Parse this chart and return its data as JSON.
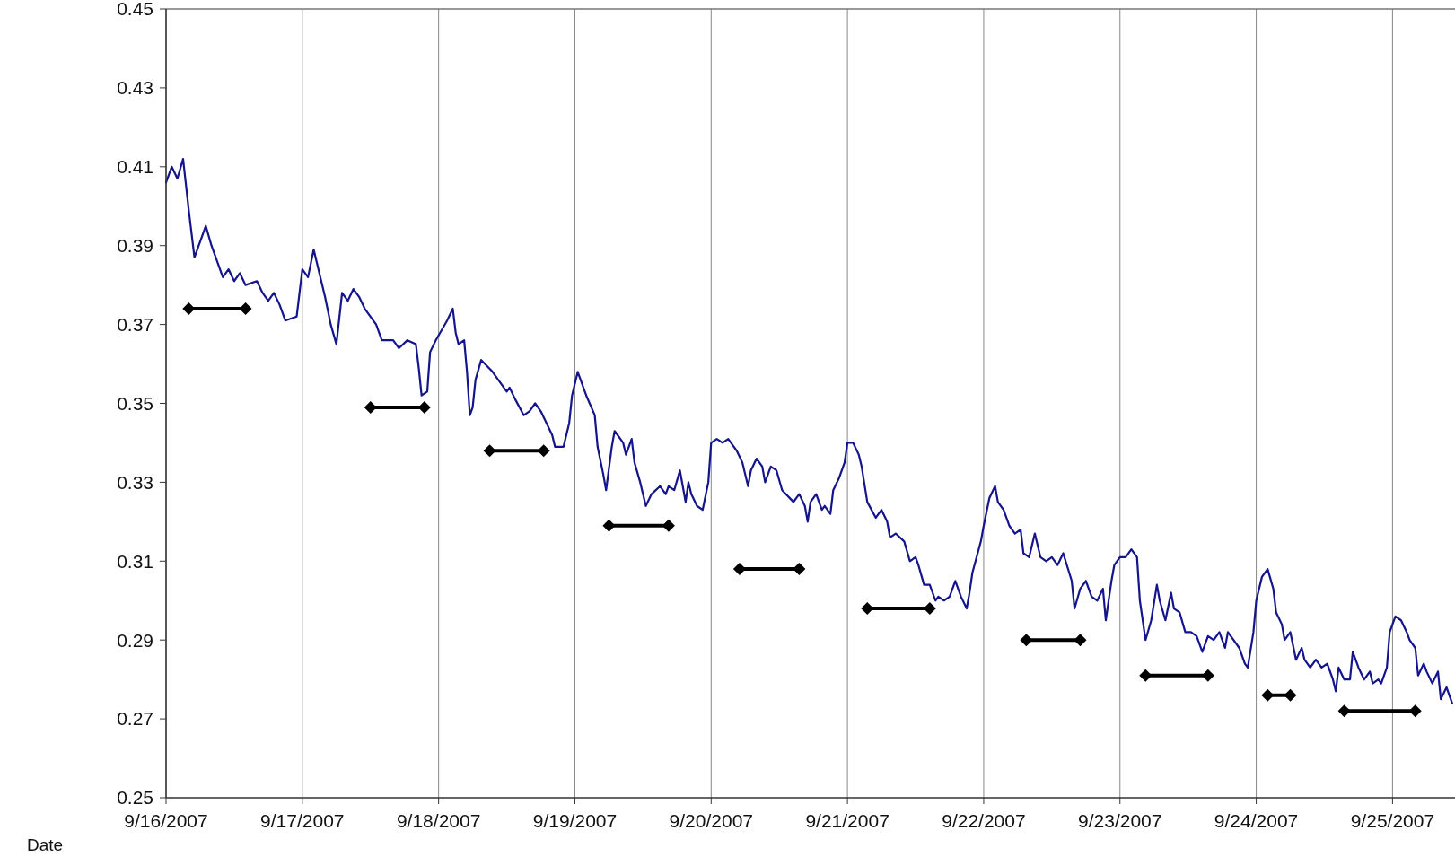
{
  "chart_data": {
    "type": "line",
    "xlabel": "Date",
    "xlim": [
      "2007-09-16",
      "2007-09-25T11:00"
    ],
    "xticks": [
      {
        "value": "2007-09-16",
        "label": "9/16/2007"
      },
      {
        "value": "2007-09-17",
        "label": "9/17/2007"
      },
      {
        "value": "2007-09-18",
        "label": "9/18/2007"
      },
      {
        "value": "2007-09-19",
        "label": "9/19/2007"
      },
      {
        "value": "2007-09-20",
        "label": "9/20/2007"
      },
      {
        "value": "2007-09-21",
        "label": "9/21/2007"
      },
      {
        "value": "2007-09-22",
        "label": "9/22/2007"
      },
      {
        "value": "2007-09-23",
        "label": "9/23/2007"
      },
      {
        "value": "2007-09-24",
        "label": "9/24/2007"
      },
      {
        "value": "2007-09-25",
        "label": "9/25/2007"
      }
    ],
    "ylim": [
      0.25,
      0.45
    ],
    "yticks": [
      0.25,
      0.27,
      0.29,
      0.31,
      0.33,
      0.35,
      0.37,
      0.39,
      0.41,
      0.43,
      0.45
    ],
    "grid": "x",
    "line_style": "solid",
    "series": [
      {
        "color": "#14148c",
        "marker": "none",
        "x": [
          "2007-09-16T00:00",
          "2007-09-16T01:00",
          "2007-09-16T02:00",
          "2007-09-16T03:00",
          "2007-09-16T04:00",
          "2007-09-16T05:00",
          "2007-09-16T07:00",
          "2007-09-16T08:00",
          "2007-09-16T10:00",
          "2007-09-16T11:00",
          "2007-09-16T12:00",
          "2007-09-16T13:00",
          "2007-09-16T14:00",
          "2007-09-16T16:00",
          "2007-09-16T17:00",
          "2007-09-16T18:00",
          "2007-09-16T19:00",
          "2007-09-16T20:00",
          "2007-09-16T21:00",
          "2007-09-16T23:00",
          "2007-09-17T00:00",
          "2007-09-17T01:00",
          "2007-09-17T02:00",
          "2007-09-17T03:00",
          "2007-09-17T04:00",
          "2007-09-17T05:00",
          "2007-09-17T06:00",
          "2007-09-17T07:00",
          "2007-09-17T08:00",
          "2007-09-17T09:00",
          "2007-09-17T10:00",
          "2007-09-17T11:00",
          "2007-09-17T12:00",
          "2007-09-17T13:00",
          "2007-09-17T14:00",
          "2007-09-17T16:00",
          "2007-09-17T17:00",
          "2007-09-17T18:30",
          "2007-09-17T20:00",
          "2007-09-17T20:30",
          "2007-09-17T21:00",
          "2007-09-17T22:00",
          "2007-09-17T22:30",
          "2007-09-17T23:30",
          "2007-09-18T01:30",
          "2007-09-18T02:30",
          "2007-09-18T03:00",
          "2007-09-18T03:30",
          "2007-09-18T04:30",
          "2007-09-18T05:00",
          "2007-09-18T05:30",
          "2007-09-18T06:00",
          "2007-09-18T06:30",
          "2007-09-18T07:30",
          "2007-09-18T09:30",
          "2007-09-18T11:00",
          "2007-09-18T12:00",
          "2007-09-18T12:30",
          "2007-09-18T13:30",
          "2007-09-18T15:00",
          "2007-09-18T16:00",
          "2007-09-18T17:00",
          "2007-09-18T18:00",
          "2007-09-18T20:00",
          "2007-09-18T20:30",
          "2007-09-18T22:00",
          "2007-09-18T23:00",
          "2007-09-18T23:30",
          "2007-09-19T00:30",
          "2007-09-19T01:00",
          "2007-09-19T02:00",
          "2007-09-19T03:30",
          "2007-09-19T04:00",
          "2007-09-19T05:00",
          "2007-09-19T05:30",
          "2007-09-19T06:30",
          "2007-09-19T07:00",
          "2007-09-19T08:30",
          "2007-09-19T09:00",
          "2007-09-19T10:00",
          "2007-09-19T10:30",
          "2007-09-19T11:30",
          "2007-09-19T12:30",
          "2007-09-19T13:30",
          "2007-09-19T15:00",
          "2007-09-19T16:00",
          "2007-09-19T16:30",
          "2007-09-19T17:30",
          "2007-09-19T18:30",
          "2007-09-19T19:30",
          "2007-09-19T20:00",
          "2007-09-19T20:30",
          "2007-09-19T21:30",
          "2007-09-19T22:30",
          "2007-09-19T23:30",
          "2007-09-20T00:00",
          "2007-09-20T01:00",
          "2007-09-20T02:00",
          "2007-09-20T03:00",
          "2007-09-20T04:00",
          "2007-09-20T04:30",
          "2007-09-20T05:30",
          "2007-09-20T06:30",
          "2007-09-20T07:00",
          "2007-09-20T08:00",
          "2007-09-20T09:00",
          "2007-09-20T09:30",
          "2007-09-20T10:30",
          "2007-09-20T11:30",
          "2007-09-20T12:30",
          "2007-09-20T14:30",
          "2007-09-20T15:30",
          "2007-09-20T16:30",
          "2007-09-20T17:00",
          "2007-09-20T17:30",
          "2007-09-20T18:30",
          "2007-09-20T19:30",
          "2007-09-20T20:00",
          "2007-09-20T21:00",
          "2007-09-20T21:30",
          "2007-09-20T22:30",
          "2007-09-20T23:30",
          "2007-09-21T00:00",
          "2007-09-21T01:00",
          "2007-09-21T02:00",
          "2007-09-21T02:30",
          "2007-09-21T03:30",
          "2007-09-21T05:00",
          "2007-09-21T06:00",
          "2007-09-21T07:00",
          "2007-09-21T07:30",
          "2007-09-21T08:30",
          "2007-09-21T10:00",
          "2007-09-21T11:00",
          "2007-09-21T12:00",
          "2007-09-21T12:30",
          "2007-09-21T13:30",
          "2007-09-21T14:30",
          "2007-09-21T15:30",
          "2007-09-21T16:00",
          "2007-09-21T17:00",
          "2007-09-21T18:00",
          "2007-09-21T19:00",
          "2007-09-21T20:00",
          "2007-09-21T21:00",
          "2007-09-21T21:30",
          "2007-09-21T22:00",
          "2007-09-21T23:30",
          "2007-09-22T00:00",
          "2007-09-22T01:00",
          "2007-09-22T02:00",
          "2007-09-22T02:30",
          "2007-09-22T03:30",
          "2007-09-22T04:30",
          "2007-09-22T05:30",
          "2007-09-22T06:30",
          "2007-09-22T07:00",
          "2007-09-22T08:00",
          "2007-09-22T09:00",
          "2007-09-22T10:00",
          "2007-09-22T11:00",
          "2007-09-22T12:00",
          "2007-09-22T13:00",
          "2007-09-22T14:00",
          "2007-09-22T15:30",
          "2007-09-22T16:00",
          "2007-09-22T17:00",
          "2007-09-22T18:00",
          "2007-09-22T19:00",
          "2007-09-22T20:00",
          "2007-09-22T21:00",
          "2007-09-22T21:30",
          "2007-09-22T22:30",
          "2007-09-22T23:00",
          "2007-09-23T00:00",
          "2007-09-23T01:00",
          "2007-09-23T02:00",
          "2007-09-23T03:00",
          "2007-09-23T03:30",
          "2007-09-23T04:30",
          "2007-09-23T05:30",
          "2007-09-23T06:30",
          "2007-09-23T07:00",
          "2007-09-23T08:00",
          "2007-09-23T09:00",
          "2007-09-23T09:30",
          "2007-09-23T10:30",
          "2007-09-23T11:30",
          "2007-09-23T12:30",
          "2007-09-23T13:30",
          "2007-09-23T14:30",
          "2007-09-23T15:30",
          "2007-09-23T16:30",
          "2007-09-23T17:30",
          "2007-09-23T18:30",
          "2007-09-23T19:00",
          "2007-09-23T20:00",
          "2007-09-23T21:00",
          "2007-09-23T22:00",
          "2007-09-23T22:30",
          "2007-09-23T23:30",
          "2007-09-24T00:00",
          "2007-09-24T01:00",
          "2007-09-24T02:00",
          "2007-09-24T03:00",
          "2007-09-24T03:30",
          "2007-09-24T04:30",
          "2007-09-24T05:00",
          "2007-09-24T06:00",
          "2007-09-24T07:00",
          "2007-09-24T08:00",
          "2007-09-24T08:30",
          "2007-09-24T09:30",
          "2007-09-24T10:30",
          "2007-09-24T11:30",
          "2007-09-24T12:30",
          "2007-09-24T13:30",
          "2007-09-24T14:00",
          "2007-09-24T14:30",
          "2007-09-24T15:30",
          "2007-09-24T16:30",
          "2007-09-24T17:00",
          "2007-09-24T18:00",
          "2007-09-24T19:00",
          "2007-09-24T20:00",
          "2007-09-24T20:30",
          "2007-09-24T21:30",
          "2007-09-24T22:00",
          "2007-09-24T23:00",
          "2007-09-24T23:30",
          "2007-09-25T00:30",
          "2007-09-25T01:30",
          "2007-09-25T02:30",
          "2007-09-25T03:00",
          "2007-09-25T04:00",
          "2007-09-25T04:30",
          "2007-09-25T05:30",
          "2007-09-25T06:00",
          "2007-09-25T07:00",
          "2007-09-25T08:00",
          "2007-09-25T08:30",
          "2007-09-25T09:30",
          "2007-09-25T10:30"
        ],
        "values": [
          0.406,
          0.41,
          0.407,
          0.412,
          0.399,
          0.387,
          0.395,
          0.39,
          0.382,
          0.384,
          0.381,
          0.383,
          0.38,
          0.381,
          0.378,
          0.376,
          0.378,
          0.375,
          0.371,
          0.372,
          0.384,
          0.382,
          0.389,
          0.383,
          0.377,
          0.37,
          0.365,
          0.378,
          0.376,
          0.379,
          0.377,
          0.374,
          0.372,
          0.37,
          0.366,
          0.366,
          0.364,
          0.366,
          0.365,
          0.359,
          0.352,
          0.353,
          0.363,
          0.366,
          0.371,
          0.374,
          0.368,
          0.365,
          0.366,
          0.358,
          0.347,
          0.349,
          0.356,
          0.361,
          0.358,
          0.355,
          0.353,
          0.354,
          0.351,
          0.347,
          0.348,
          0.35,
          0.348,
          0.342,
          0.339,
          0.339,
          0.345,
          0.352,
          0.358,
          0.356,
          0.352,
          0.347,
          0.339,
          0.332,
          0.328,
          0.339,
          0.343,
          0.34,
          0.337,
          0.341,
          0.335,
          0.33,
          0.324,
          0.327,
          0.329,
          0.327,
          0.329,
          0.328,
          0.333,
          0.325,
          0.33,
          0.327,
          0.324,
          0.323,
          0.33,
          0.34,
          0.341,
          0.34,
          0.341,
          0.339,
          0.338,
          0.335,
          0.329,
          0.333,
          0.336,
          0.334,
          0.33,
          0.334,
          0.333,
          0.328,
          0.325,
          0.327,
          0.324,
          0.32,
          0.325,
          0.327,
          0.323,
          0.324,
          0.322,
          0.328,
          0.331,
          0.335,
          0.34,
          0.34,
          0.337,
          0.334,
          0.325,
          0.321,
          0.323,
          0.32,
          0.316,
          0.317,
          0.315,
          0.31,
          0.311,
          0.309,
          0.304,
          0.304,
          0.3,
          0.301,
          0.3,
          0.301,
          0.305,
          0.301,
          0.298,
          0.302,
          0.307,
          0.315,
          0.319,
          0.326,
          0.329,
          0.325,
          0.323,
          0.319,
          0.317,
          0.318,
          0.312,
          0.311,
          0.317,
          0.311,
          0.31,
          0.311,
          0.309,
          0.312,
          0.305,
          0.298,
          0.303,
          0.305,
          0.301,
          0.3,
          0.303,
          0.295,
          0.305,
          0.309,
          0.311,
          0.311,
          0.313,
          0.311,
          0.3,
          0.29,
          0.295,
          0.304,
          0.3,
          0.295,
          0.302,
          0.298,
          0.297,
          0.292,
          0.292,
          0.291,
          0.287,
          0.291,
          0.29,
          0.292,
          0.288,
          0.292,
          0.29,
          0.288,
          0.284,
          0.283,
          0.292,
          0.3,
          0.306,
          0.308,
          0.303,
          0.297,
          0.294,
          0.29,
          0.292,
          0.285,
          0.288,
          0.285,
          0.283,
          0.285,
          0.283,
          0.284,
          0.28,
          0.277,
          0.283,
          0.28,
          0.28,
          0.287,
          0.283,
          0.28,
          0.282,
          0.279,
          0.28,
          0.279,
          0.283,
          0.292,
          0.296,
          0.295,
          0.292,
          0.29,
          0.288,
          0.281,
          0.284,
          0.282,
          0.279,
          0.282,
          0.275,
          0.278,
          0.274
        ]
      },
      {
        "color": "#000000",
        "marker": "diamond",
        "x": [
          "2007-09-16T04:00",
          "2007-09-16T14:00"
        ],
        "values": [
          0.374,
          0.374
        ]
      },
      {
        "color": "#000000",
        "marker": "diamond",
        "x": [
          "2007-09-17T12:00",
          "2007-09-17T21:30"
        ],
        "values": [
          0.349,
          0.349
        ]
      },
      {
        "color": "#000000",
        "marker": "diamond",
        "x": [
          "2007-09-18T09:00",
          "2007-09-18T18:30"
        ],
        "values": [
          0.338,
          0.338
        ]
      },
      {
        "color": "#000000",
        "marker": "diamond",
        "x": [
          "2007-09-19T06:00",
          "2007-09-19T16:30"
        ],
        "values": [
          0.319,
          0.319
        ]
      },
      {
        "color": "#000000",
        "marker": "diamond",
        "x": [
          "2007-09-20T05:00",
          "2007-09-20T15:30"
        ],
        "values": [
          0.308,
          0.308
        ]
      },
      {
        "color": "#000000",
        "marker": "diamond",
        "x": [
          "2007-09-21T03:30",
          "2007-09-21T14:30"
        ],
        "values": [
          0.298,
          0.298
        ]
      },
      {
        "color": "#000000",
        "marker": "diamond",
        "x": [
          "2007-09-22T07:30",
          "2007-09-22T17:00"
        ],
        "values": [
          0.29,
          0.29
        ]
      },
      {
        "color": "#000000",
        "marker": "diamond",
        "x": [
          "2007-09-23T04:30",
          "2007-09-23T15:30"
        ],
        "values": [
          0.281,
          0.281
        ]
      },
      {
        "color": "#000000",
        "marker": "diamond",
        "x": [
          "2007-09-24T02:00",
          "2007-09-24T06:00"
        ],
        "values": [
          0.276,
          0.276
        ]
      },
      {
        "color": "#000000",
        "marker": "diamond",
        "x": [
          "2007-09-24T15:30",
          "2007-09-25T04:00"
        ],
        "values": [
          0.272,
          0.272
        ]
      }
    ]
  }
}
